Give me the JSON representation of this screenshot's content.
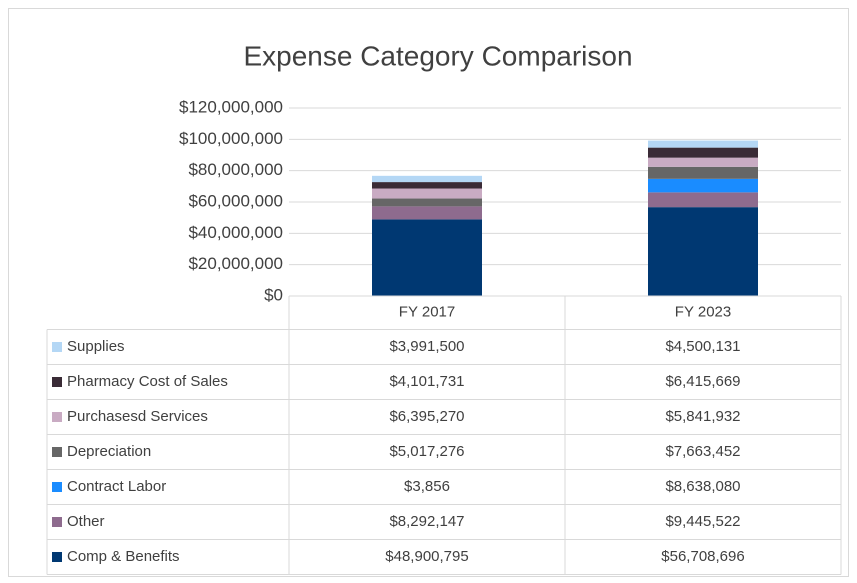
{
  "chart_data": {
    "type": "stacked_bar",
    "title": "Expense Category Comparison",
    "categories": [
      "FY 2017",
      "FY 2023"
    ],
    "series": [
      {
        "name": "Comp & Benefits",
        "color": "#003872",
        "values": [
          48900795,
          56708696
        ],
        "value_labels": [
          "$48,900,795",
          "$56,708,696"
        ]
      },
      {
        "name": "Other",
        "color": "#8e6b8e",
        "values": [
          8292147,
          9445522
        ],
        "value_labels": [
          "$8,292,147",
          "$9,445,522"
        ]
      },
      {
        "name": "Contract Labor",
        "color": "#1a8cff",
        "values": [
          3856,
          8638080
        ],
        "value_labels": [
          "$3,856",
          "$8,638,080"
        ]
      },
      {
        "name": "Depreciation",
        "color": "#666666",
        "values": [
          5017276,
          7663452
        ],
        "value_labels": [
          "$5,017,276",
          "$7,663,452"
        ]
      },
      {
        "name": "Purchasesd Services",
        "color": "#c9abc3",
        "values": [
          6395270,
          5841932
        ],
        "value_labels": [
          "$6,395,270",
          "$5,841,932"
        ]
      },
      {
        "name": "Pharmacy Cost of Sales",
        "color": "#3a2b36",
        "values": [
          4101731,
          6415669
        ],
        "value_labels": [
          "$4,101,731",
          "$6,415,669"
        ]
      },
      {
        "name": "Supplies",
        "color": "#b4d7f5",
        "values": [
          3991500,
          4500131
        ],
        "value_labels": [
          "$3,991,500",
          "$4,500,131"
        ]
      }
    ],
    "ylim": [
      0,
      120000000
    ],
    "yticks": [
      {
        "value": 0,
        "label": "$0"
      },
      {
        "value": 20000000,
        "label": "$20,000,000"
      },
      {
        "value": 40000000,
        "label": "$40,000,000"
      },
      {
        "value": 60000000,
        "label": "$60,000,000"
      },
      {
        "value": 80000000,
        "label": "$80,000,000"
      },
      {
        "value": 100000000,
        "label": "$100,000,000"
      },
      {
        "value": 120000000,
        "label": "$120,000,000"
      }
    ],
    "grid": true
  }
}
